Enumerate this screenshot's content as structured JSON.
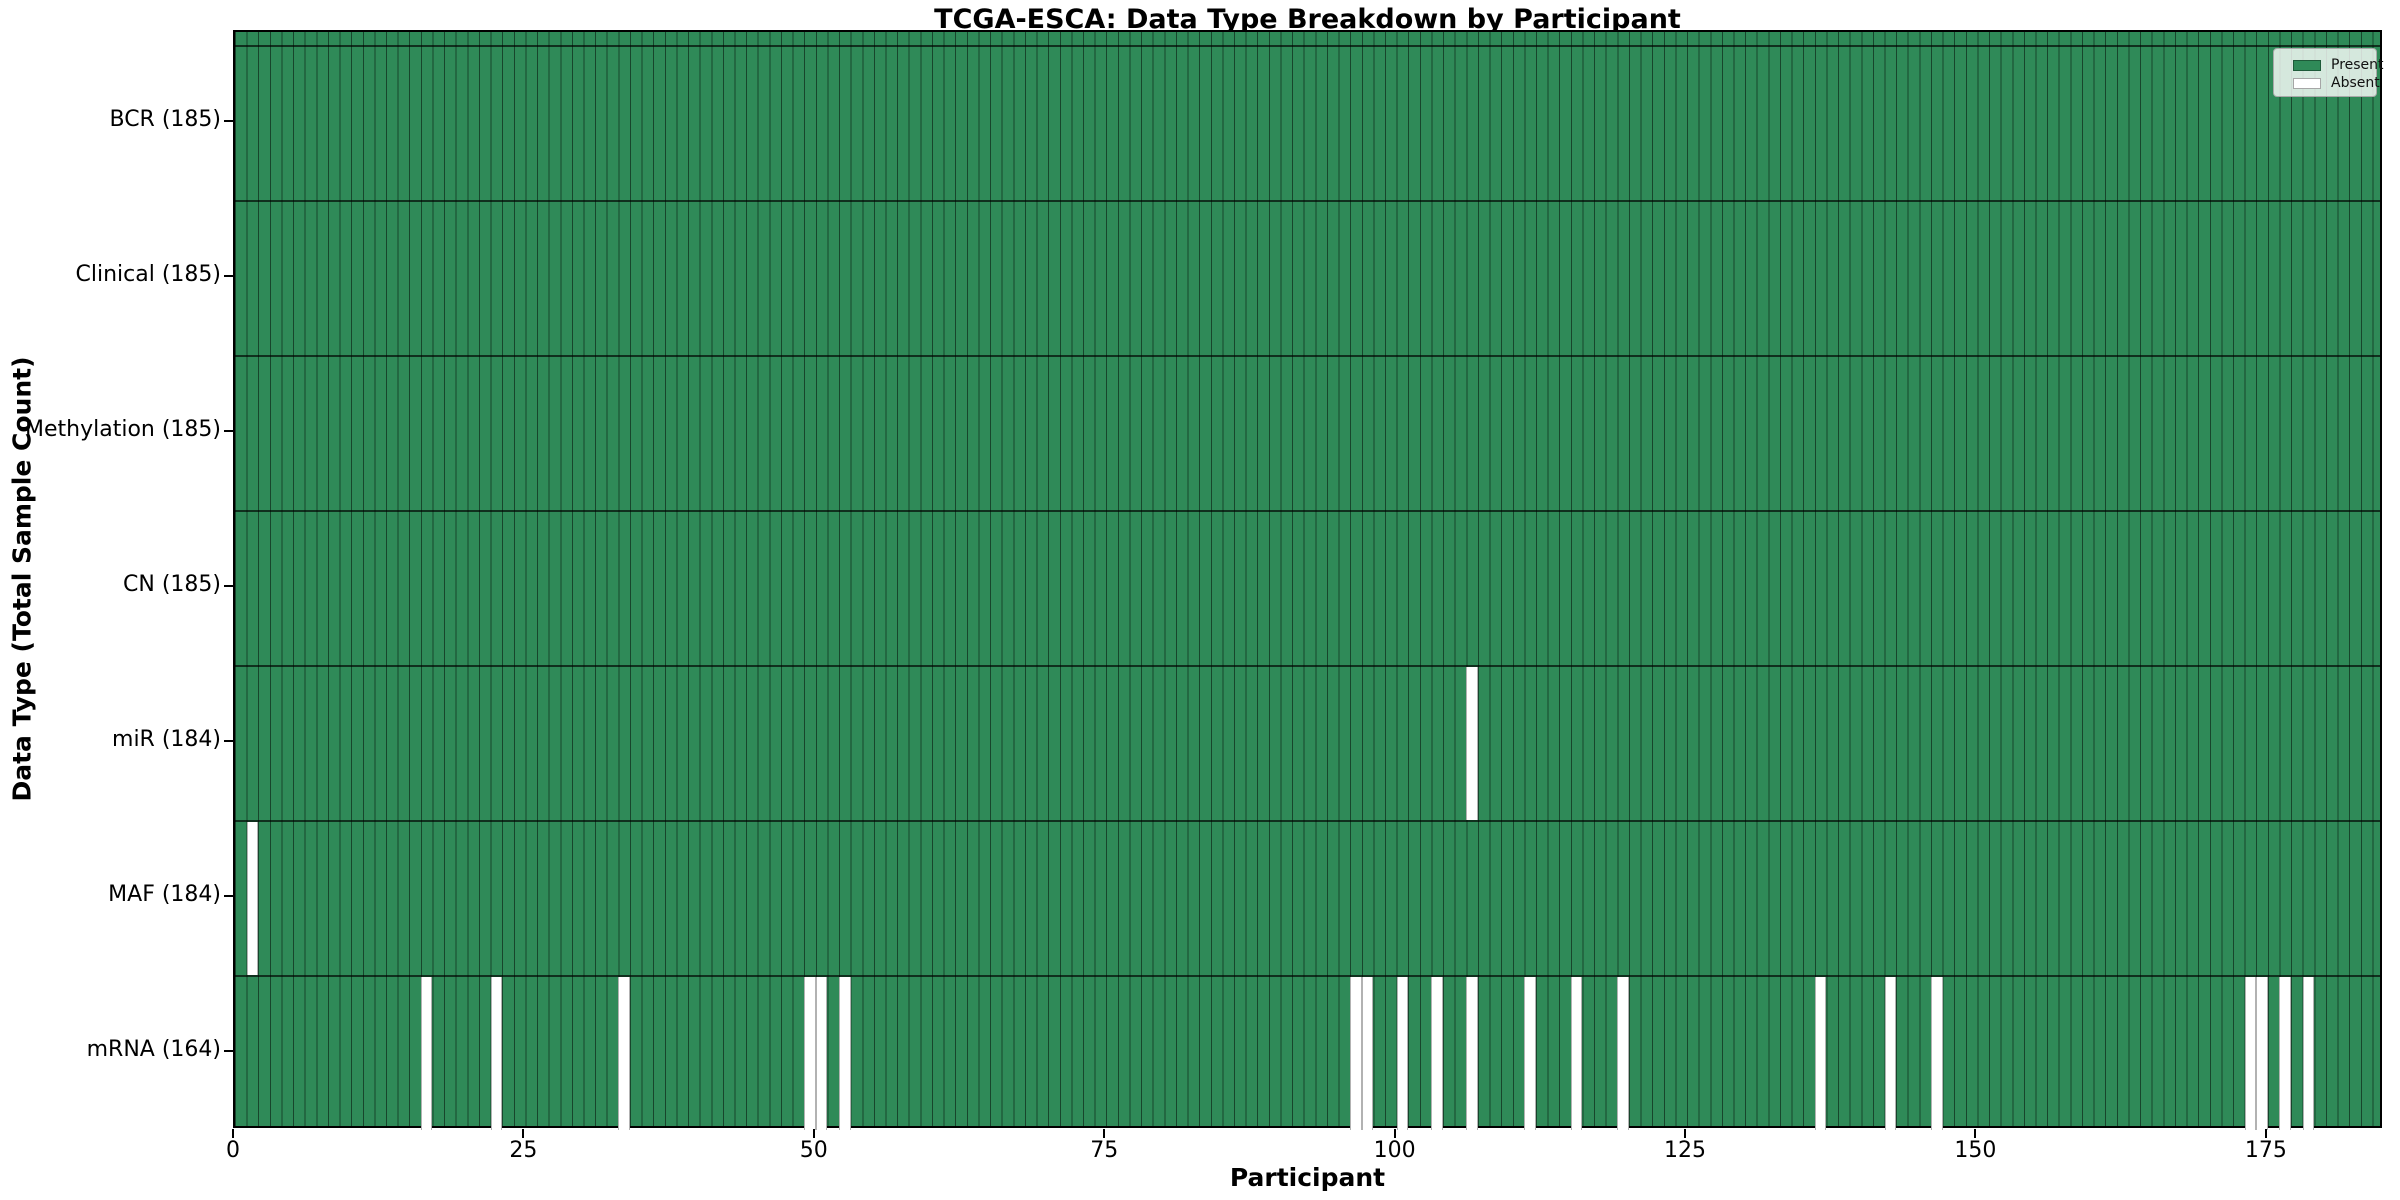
{
  "chart_data": {
    "type": "heatmap",
    "title": "TCGA-ESCA: Data Type Breakdown by Participant",
    "xlabel": "Participant",
    "ylabel": "Data Type (Total Sample Count)",
    "n_participants": 185,
    "x_range": [
      0,
      185
    ],
    "x_ticks": [
      "0",
      "25",
      "50",
      "75",
      "100",
      "125",
      "150",
      "175"
    ],
    "grid": "cell-edge-lines",
    "legend": {
      "position": "upper-right",
      "entries": [
        {
          "label": "Present",
          "color": "#2F8A58"
        },
        {
          "label": "Absent",
          "color": "#FFFFFF"
        }
      ]
    },
    "colors": {
      "present": "#2F8A58",
      "absent": "#FFFFFF",
      "cell_edge": "rgba(0,0,0,0.50)",
      "row_divider": "rgba(0,0,0,0.65)",
      "frame": "#000000"
    },
    "rows": [
      {
        "label": "BCR (185)",
        "data_type": "BCR",
        "present_count": 185,
        "absent_participants": []
      },
      {
        "label": "Clinical (185)",
        "data_type": "Clinical",
        "present_count": 185,
        "absent_participants": []
      },
      {
        "label": "Methylation (185)",
        "data_type": "Methylation",
        "present_count": 185,
        "absent_participants": []
      },
      {
        "label": "CN (185)",
        "data_type": "CN",
        "present_count": 185,
        "absent_participants": []
      },
      {
        "label": "miR (184)",
        "data_type": "miR",
        "present_count": 184,
        "absent_participants": [
          106
        ]
      },
      {
        "label": "MAF (184)",
        "data_type": "MAF",
        "present_count": 184,
        "absent_participants": [
          1
        ]
      },
      {
        "label": "mRNA (164)",
        "data_type": "mRNA",
        "present_count": 164,
        "absent_participants": [
          16,
          22,
          33,
          49,
          50,
          52,
          96,
          97,
          100,
          103,
          106,
          111,
          115,
          119,
          136,
          142,
          146,
          173,
          174,
          176,
          178
        ]
      }
    ]
  }
}
